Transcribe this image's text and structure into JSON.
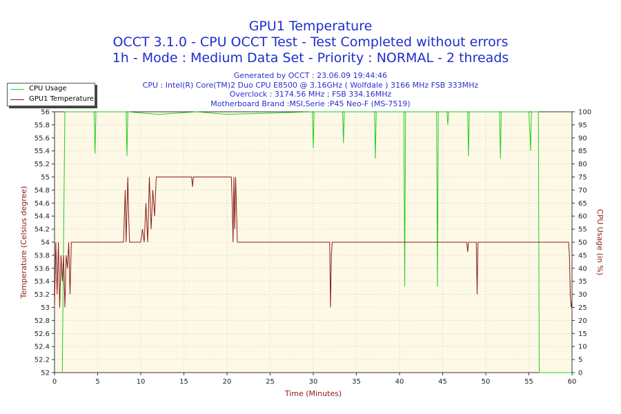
{
  "chart_data": {
    "type": "line",
    "title": "GPU1 Temperature",
    "subtitle_1": "OCCT 3.1.0 - CPU OCCT Test - Test Completed without errors",
    "subtitle_2": "1h - Mode : Medium Data Set - Priority : NORMAL - 2 threads",
    "info": [
      "Generated by OCCT : 23.06.09 19:44:46",
      "CPU : Intel(R) Core(TM)2 Duo CPU E8500 @ 3.16GHz ( Wolfdale ) 3166 MHz FSB 333MHz",
      "Overclock : 3174.56 MHz ; FSB 334.16MHz",
      "Motherboard Brand :MSI,Serie :P45 Neo-F (MS-7519)"
    ],
    "xlabel": "Time (Minutes)",
    "ylabel_left": "Temperature (Celsius degree)",
    "ylabel_right": "CPU Usage (in %)",
    "xlim": [
      0,
      60
    ],
    "ylim_left": [
      52,
      56
    ],
    "ylim_right": [
      0,
      100
    ],
    "x_ticks": [
      "0",
      "5",
      "10",
      "15",
      "20",
      "25",
      "30",
      "35",
      "40",
      "45",
      "50",
      "55",
      "60"
    ],
    "y_ticks_left": [
      "52",
      "52.2",
      "52.4",
      "52.6",
      "52.8",
      "53",
      "53.2",
      "53.4",
      "53.6",
      "53.8",
      "54",
      "54.2",
      "54.4",
      "54.6",
      "54.8",
      "55",
      "55.2",
      "55.4",
      "55.6",
      "55.8",
      "56"
    ],
    "y_ticks_right": [
      "0",
      "5",
      "10",
      "15",
      "20",
      "25",
      "30",
      "35",
      "40",
      "45",
      "50",
      "55",
      "60",
      "65",
      "70",
      "75",
      "80",
      "85",
      "90",
      "95",
      "100"
    ],
    "grid": true,
    "legend_placement": "top-left, outside plot",
    "colors": {
      "cpu_usage": "#22cc22",
      "gpu_temp": "#8b1a1a",
      "plot_bg": "#fdf9e6",
      "grid": "#aaaaaa",
      "axis_label": "#8b1a1a",
      "title": "#1f2dcc"
    },
    "series": [
      {
        "name": "CPU Usage",
        "axis": "right",
        "x": [
          0.9,
          1.05,
          1.2,
          4.6,
          4.7,
          4.8,
          8.3,
          8.4,
          8.5,
          12.0,
          16.5,
          20.0,
          29.9,
          30.0,
          30.1,
          33.4,
          33.5,
          33.6,
          37.1,
          37.2,
          37.3,
          40.5,
          40.6,
          40.7,
          44.3,
          44.4,
          44.5,
          45.5,
          45.6,
          45.7,
          47.9,
          48.0,
          48.1,
          51.6,
          51.7,
          51.8,
          55.0,
          55.1,
          55.2,
          55.3,
          56.1,
          56.2,
          56.3,
          60.0
        ],
        "values": [
          0,
          50,
          100,
          100,
          84,
          100,
          100,
          83,
          100,
          99,
          100,
          99,
          100,
          86,
          100,
          100,
          88,
          100,
          100,
          82,
          100,
          100,
          33,
          100,
          100,
          33,
          100,
          100,
          95,
          100,
          100,
          83,
          100,
          100,
          82,
          100,
          100,
          93,
          85,
          100,
          100,
          0,
          0,
          0
        ]
      },
      {
        "name": "GPU1 Temperature",
        "axis": "left",
        "x": [
          0.0,
          0.15,
          0.3,
          0.45,
          0.6,
          0.75,
          0.9,
          1.05,
          1.2,
          1.35,
          1.5,
          1.65,
          1.8,
          1.95,
          2.1,
          8.0,
          8.2,
          8.3,
          8.5,
          8.6,
          8.7,
          8.9,
          10.0,
          10.2,
          10.4,
          10.6,
          10.8,
          11.0,
          11.2,
          11.4,
          11.6,
          11.8,
          12.0,
          12.2,
          15.9,
          16.0,
          16.1,
          20.5,
          20.6,
          20.7,
          20.8,
          20.9,
          21.0,
          21.2,
          31.9,
          32.0,
          32.1,
          32.2,
          47.8,
          47.9,
          48.0,
          48.9,
          49.0,
          49.1,
          59.6,
          59.7,
          59.8,
          59.9,
          60.0
        ],
        "values": [
          53.0,
          54.0,
          53.2,
          54.0,
          53.0,
          53.8,
          53.4,
          53.8,
          53.0,
          53.8,
          53.6,
          54.0,
          53.2,
          54.0,
          54.0,
          54.0,
          54.8,
          54.0,
          55.0,
          54.4,
          54.0,
          54.0,
          54.0,
          54.2,
          54.0,
          54.6,
          54.0,
          55.0,
          54.2,
          54.8,
          54.4,
          55.0,
          55.0,
          55.0,
          55.0,
          54.85,
          55.0,
          55.0,
          54.6,
          54.0,
          55.0,
          54.2,
          55.0,
          54.0,
          54.0,
          53.0,
          53.8,
          54.0,
          54.0,
          53.85,
          54.0,
          54.0,
          53.2,
          54.0,
          54.0,
          53.8,
          53.2,
          53.0,
          53.1
        ]
      }
    ]
  }
}
